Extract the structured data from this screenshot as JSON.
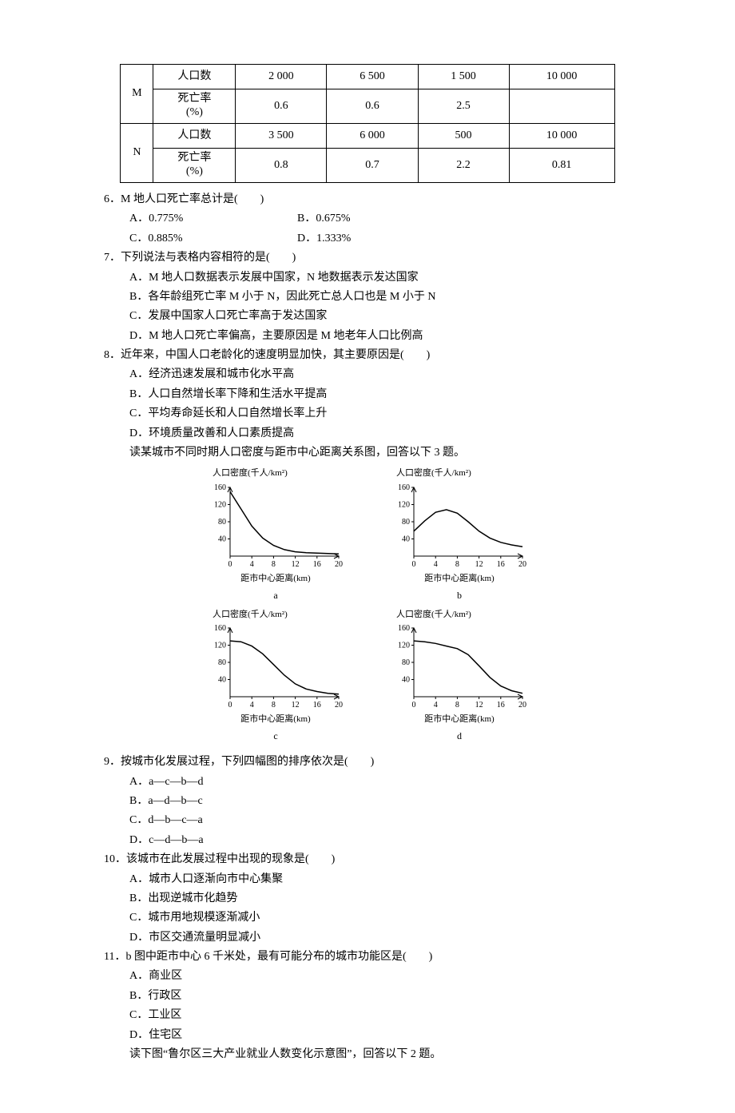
{
  "table": {
    "row_M": "M",
    "row_N": "N",
    "metric_pop": "人口数",
    "metric_death": "死亡率\n(%)",
    "M_pop": [
      "2 000",
      "6 500",
      "1 500",
      "10 000"
    ],
    "M_death": [
      "0.6",
      "0.6",
      "2.5",
      ""
    ],
    "N_pop": [
      "3 500",
      "6 000",
      "500",
      "10 000"
    ],
    "N_death": [
      "0.8",
      "0.7",
      "2.2",
      "0.81"
    ]
  },
  "q6": {
    "stem": "6．M 地人口死亡率总计是(　　)",
    "A": "A．0.775%",
    "B": "B．0.675%",
    "C": "C．0.885%",
    "D": "D．1.333%"
  },
  "q7": {
    "stem": "7．下列说法与表格内容相符的是(　　)",
    "A": "A．M 地人口数据表示发展中国家，N 地数据表示发达国家",
    "B": "B．各年龄组死亡率 M 小于 N，因此死亡总人口也是 M 小于 N",
    "C": "C．发展中国家人口死亡率高于发达国家",
    "D": "D．M 地人口死亡率偏高，主要原因是 M 地老年人口比例高"
  },
  "q8": {
    "stem": "8．近年来，中国人口老龄化的速度明显加快，其主要原因是(　　)",
    "A": "A．经济迅速发展和城市化水平高",
    "B": "B．人口自然增长率下降和生活水平提高",
    "C": "C．平均寿命延长和人口自然增长率上升",
    "D": "D．环境质量改善和人口素质提高",
    "lead": "读某城市不同时期人口密度与距市中心距离关系图，回答以下 3 题。"
  },
  "charts": {
    "ytitle": "人口密度(千人/km²)",
    "xtitle": "距市中心距离(km)",
    "xtitle_c": "距市中心距离(km)",
    "ylim": [
      0,
      160
    ],
    "yticks": [
      0,
      40,
      80,
      120,
      160
    ],
    "xlim": [
      0,
      20
    ],
    "xticks": [
      0,
      4,
      8,
      12,
      16,
      20
    ],
    "line_color": "#000000",
    "axis_color": "#000000",
    "line_width": 1.5,
    "a": {
      "tag": "a",
      "pts": [
        [
          0,
          150
        ],
        [
          2,
          110
        ],
        [
          4,
          70
        ],
        [
          6,
          42
        ],
        [
          8,
          25
        ],
        [
          10,
          15
        ],
        [
          12,
          10
        ],
        [
          14,
          8
        ],
        [
          16,
          7
        ],
        [
          18,
          6
        ],
        [
          20,
          5
        ]
      ]
    },
    "c": {
      "tag": "c",
      "pts": [
        [
          0,
          130
        ],
        [
          2,
          128
        ],
        [
          4,
          118
        ],
        [
          6,
          100
        ],
        [
          8,
          75
        ],
        [
          10,
          50
        ],
        [
          12,
          30
        ],
        [
          14,
          18
        ],
        [
          16,
          12
        ],
        [
          18,
          8
        ],
        [
          20,
          6
        ]
      ]
    },
    "b": {
      "tag": "b",
      "pts": [
        [
          0,
          58
        ],
        [
          2,
          82
        ],
        [
          4,
          102
        ],
        [
          6,
          108
        ],
        [
          8,
          100
        ],
        [
          10,
          80
        ],
        [
          12,
          58
        ],
        [
          14,
          42
        ],
        [
          16,
          32
        ],
        [
          18,
          26
        ],
        [
          20,
          22
        ]
      ]
    },
    "d": {
      "tag": "d",
      "pts": [
        [
          0,
          130
        ],
        [
          2,
          128
        ],
        [
          4,
          124
        ],
        [
          6,
          118
        ],
        [
          8,
          112
        ],
        [
          10,
          98
        ],
        [
          12,
          72
        ],
        [
          14,
          45
        ],
        [
          16,
          25
        ],
        [
          18,
          14
        ],
        [
          20,
          8
        ]
      ]
    }
  },
  "q9": {
    "stem": "9．按城市化发展过程，下列四幅图的排序依次是(　　)",
    "A": "A．a—c—b—d",
    "B": "B．a—d—b—c",
    "C": "C．d—b—c—a",
    "D": "D．c—d—b—a"
  },
  "q10": {
    "stem": "10．该城市在此发展过程中出现的现象是(　　)",
    "A": "A．城市人口逐渐向市中心集聚",
    "B": "B．出现逆城市化趋势",
    "C": "C．城市用地规模逐渐减小",
    "D": "D．市区交通流量明显减小"
  },
  "q11": {
    "stem": "11．b 图中距市中心 6 千米处，最有可能分布的城市功能区是(　　)",
    "A": "A．商业区",
    "B": "B．行政区",
    "C": "C．工业区",
    "D": "D．住宅区",
    "lead": "读下图“鲁尔区三大产业就业人数变化示意图”，回答以下 2 题。"
  }
}
